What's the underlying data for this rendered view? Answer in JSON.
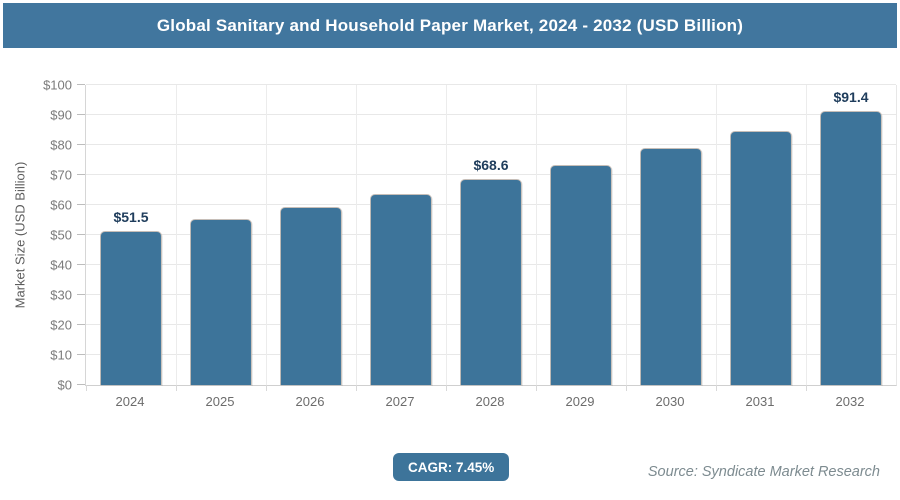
{
  "header": {
    "title": "Global Sanitary and Household Paper Market, 2024 - 2032 (USD Billion)"
  },
  "chart_data": {
    "type": "bar",
    "title": "Global Sanitary and Household Paper Market, 2024 - 2032 (USD Billion)",
    "categories": [
      "2024",
      "2025",
      "2026",
      "2027",
      "2028",
      "2029",
      "2030",
      "2031",
      "2032"
    ],
    "values": [
      51.5,
      55.2,
      59.3,
      63.6,
      68.6,
      73.3,
      78.9,
      84.7,
      91.4
    ],
    "point_labels": [
      "$51.5",
      null,
      null,
      null,
      "$68.6",
      null,
      null,
      null,
      "$91.4"
    ],
    "xlabel": "",
    "ylabel": "Market Size (USD Billion)",
    "ylim": [
      0,
      100
    ],
    "ytick_step": 10,
    "ytick_prefix": "$",
    "grid": "both",
    "legend": "none",
    "bar_color": "#3d749a"
  },
  "footer": {
    "cagr_label": "CAGR: 7.45%",
    "source": "Source: Syndicate Market Research"
  },
  "colors": {
    "header_bg": "#41769e",
    "bar": "#3d749a",
    "badge_bg": "#3d749a",
    "value_label_text": "#1f3d5c",
    "axis_text": "#7b7b7b",
    "gridline": "#e8e8e8"
  }
}
